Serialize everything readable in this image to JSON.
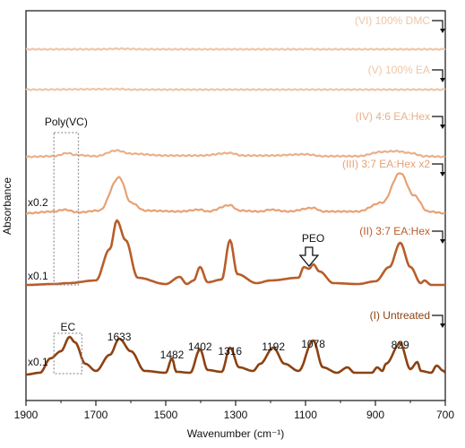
{
  "chart_data": {
    "type": "line",
    "xlabel": "Wavenumber (cm⁻¹)",
    "ylabel": "Absorbance",
    "xlim": [
      1900,
      700
    ],
    "x_reversed": true,
    "xticks": [
      1900,
      1700,
      1500,
      1300,
      1100,
      900,
      700
    ],
    "grid": false,
    "series": [
      {
        "name": "(VI) 100% DMC",
        "color": "#efc6a6",
        "multiplier": "",
        "points": [
          [
            1900,
            0
          ],
          [
            1700,
            0
          ],
          [
            1630,
            0.01
          ],
          [
            1560,
            0
          ],
          [
            1100,
            0
          ],
          [
            1090,
            0.01
          ],
          [
            1080,
            0
          ],
          [
            700,
            0
          ]
        ]
      },
      {
        "name": "(V) 100% EA",
        "color": "#efc6a6",
        "multiplier": "",
        "points": [
          [
            1900,
            0
          ],
          [
            1630,
            0.01
          ],
          [
            1600,
            0
          ],
          [
            1100,
            0
          ],
          [
            700,
            0
          ]
        ]
      },
      {
        "name": "(IV) 4:6 EA:Hex",
        "color": "#eab08a",
        "multiplier": "",
        "points": [
          [
            1900,
            0
          ],
          [
            1820,
            0.01
          ],
          [
            1780,
            0.06
          ],
          [
            1760,
            0.03
          ],
          [
            1700,
            0.01
          ],
          [
            1640,
            0.1
          ],
          [
            1600,
            0.05
          ],
          [
            1500,
            0.02
          ],
          [
            1400,
            0.02
          ],
          [
            1316,
            0.06
          ],
          [
            1280,
            0.02
          ],
          [
            1200,
            0.02
          ],
          [
            1100,
            0.04
          ],
          [
            1050,
            0.01
          ],
          [
            950,
            0.01
          ],
          [
            880,
            0.08
          ],
          [
            840,
            0.09
          ],
          [
            800,
            0.06
          ],
          [
            760,
            0.01
          ],
          [
            700,
            0
          ]
        ]
      },
      {
        "name": "(III) 3:7 EA:Hex x2",
        "color": "#e8a173",
        "multiplier": "x0.2",
        "points": [
          [
            1900,
            0
          ],
          [
            1820,
            0.02
          ],
          [
            1790,
            0.04
          ],
          [
            1750,
            0.01
          ],
          [
            1690,
            0.03
          ],
          [
            1633,
            0.4
          ],
          [
            1600,
            0.12
          ],
          [
            1560,
            0.03
          ],
          [
            1460,
            0.02
          ],
          [
            1402,
            0.04
          ],
          [
            1380,
            0.02
          ],
          [
            1316,
            0.09
          ],
          [
            1290,
            0.03
          ],
          [
            1230,
            0.02
          ],
          [
            1200,
            0.04
          ],
          [
            1150,
            0.02
          ],
          [
            1078,
            0.06
          ],
          [
            1050,
            0.02
          ],
          [
            950,
            0.02
          ],
          [
            880,
            0.12
          ],
          [
            829,
            0.45
          ],
          [
            790,
            0.2
          ],
          [
            750,
            0.02
          ],
          [
            700,
            0
          ]
        ]
      },
      {
        "name": "(II) 3:7 EA:Hex",
        "color": "#b85d2a",
        "multiplier": "x0.1",
        "points": [
          [
            1900,
            0
          ],
          [
            1820,
            0.01
          ],
          [
            1780,
            0.02
          ],
          [
            1700,
            0.05
          ],
          [
            1660,
            0.4
          ],
          [
            1640,
            0.72
          ],
          [
            1615,
            0.5
          ],
          [
            1580,
            0.08
          ],
          [
            1500,
            0.01
          ],
          [
            1460,
            0.09
          ],
          [
            1440,
            0.01
          ],
          [
            1420,
            0.05
          ],
          [
            1402,
            0.2
          ],
          [
            1380,
            0.03
          ],
          [
            1340,
            0.06
          ],
          [
            1316,
            0.5
          ],
          [
            1295,
            0.12
          ],
          [
            1240,
            0.02
          ],
          [
            1200,
            0.05
          ],
          [
            1120,
            0.08
          ],
          [
            1105,
            0.2
          ],
          [
            1090,
            0.18
          ],
          [
            1078,
            0.23
          ],
          [
            1060,
            0.15
          ],
          [
            1020,
            0.02
          ],
          [
            950,
            0.01
          ],
          [
            900,
            0.04
          ],
          [
            860,
            0.2
          ],
          [
            829,
            0.47
          ],
          [
            800,
            0.2
          ],
          [
            770,
            0.02
          ],
          [
            760,
            0.05
          ],
          [
            740,
            0
          ],
          [
            700,
            0
          ]
        ]
      },
      {
        "name": "(I) Untreated",
        "color": "#8c4212",
        "multiplier": "x0.1",
        "points": [
          [
            1900,
            0
          ],
          [
            1860,
            0.02
          ],
          [
            1830,
            0.18
          ],
          [
            1800,
            0.26
          ],
          [
            1775,
            0.42
          ],
          [
            1760,
            0.36
          ],
          [
            1730,
            0.12
          ],
          [
            1700,
            0.04
          ],
          [
            1660,
            0.22
          ],
          [
            1633,
            0.4
          ],
          [
            1600,
            0.26
          ],
          [
            1560,
            0.04
          ],
          [
            1500,
            0.02
          ],
          [
            1482,
            0.18
          ],
          [
            1470,
            0.03
          ],
          [
            1430,
            0.02
          ],
          [
            1402,
            0.28
          ],
          [
            1380,
            0.05
          ],
          [
            1340,
            0.03
          ],
          [
            1316,
            0.3
          ],
          [
            1290,
            0.08
          ],
          [
            1250,
            0.04
          ],
          [
            1230,
            0.12
          ],
          [
            1192,
            0.3
          ],
          [
            1160,
            0.12
          ],
          [
            1120,
            0.04
          ],
          [
            1078,
            0.38
          ],
          [
            1050,
            0.08
          ],
          [
            1010,
            0.02
          ],
          [
            980,
            0.08
          ],
          [
            960,
            0.02
          ],
          [
            910,
            0.02
          ],
          [
            895,
            0.08
          ],
          [
            880,
            0.04
          ],
          [
            870,
            0.12
          ],
          [
            829,
            0.35
          ],
          [
            800,
            0.06
          ],
          [
            780,
            0.14
          ],
          [
            770,
            0.04
          ],
          [
            740,
            0.02
          ],
          [
            725,
            0.1
          ],
          [
            705,
            0.04
          ],
          [
            700,
            0.02
          ]
        ]
      }
    ],
    "peak_labels": [
      {
        "text": "1633",
        "x": 1633
      },
      {
        "text": "1482",
        "x": 1482
      },
      {
        "text": "1402",
        "x": 1402
      },
      {
        "text": "1316",
        "x": 1316
      },
      {
        "text": "1192",
        "x": 1192
      },
      {
        "text": "1078",
        "x": 1078
      },
      {
        "text": "829",
        "x": 829
      }
    ],
    "annotations": {
      "poly_vc": "Poly(VC)",
      "ec": "EC",
      "peo": "PEO"
    }
  }
}
